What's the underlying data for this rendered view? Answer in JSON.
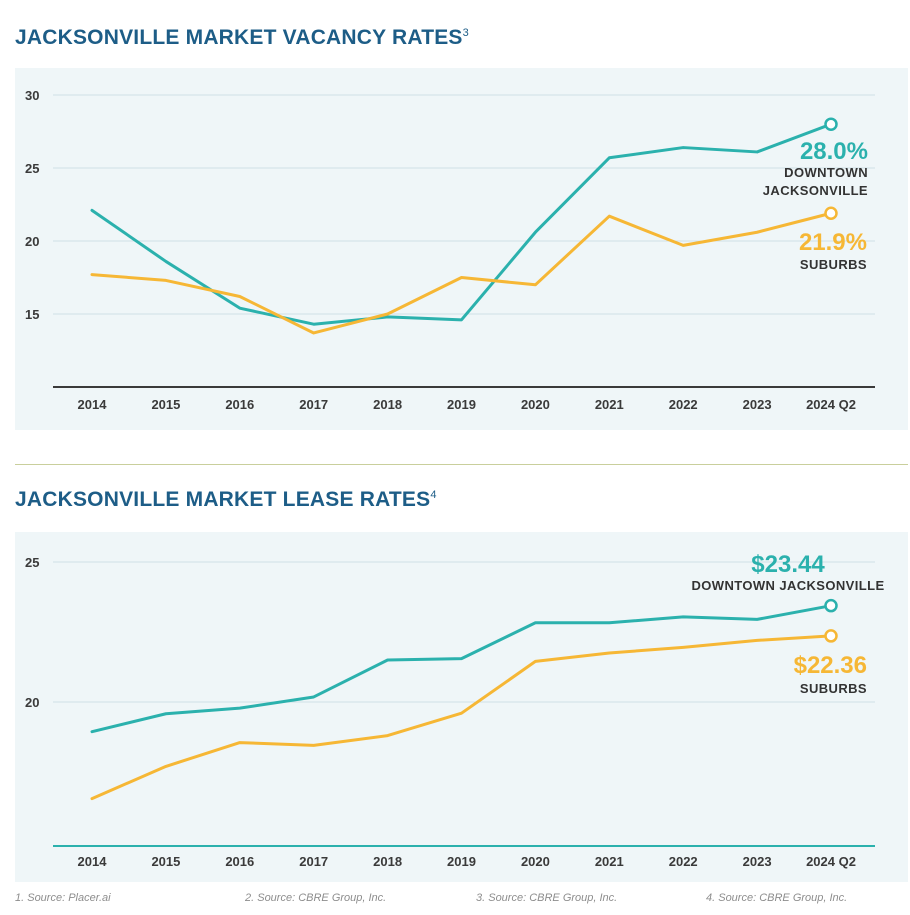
{
  "chart_data": [
    {
      "type": "line",
      "title": "JACKSONVILLE MARKET VACANCY RATES",
      "title_sup": "3",
      "categories": [
        "2014",
        "2015",
        "2016",
        "2017",
        "2018",
        "2019",
        "2020",
        "2021",
        "2022",
        "2023",
        "2024 Q2"
      ],
      "yticks": [
        15,
        20,
        25,
        30
      ],
      "ylim": [
        10,
        30
      ],
      "colors": {
        "downtown": "#2bb1ad",
        "suburbs": "#f6b735",
        "axis": "#3a3a3a"
      },
      "series": [
        {
          "name": "DOWNTOWN JACKSONVILLE",
          "key": "downtown",
          "values": [
            22.1,
            18.6,
            15.4,
            14.3,
            14.8,
            14.6,
            20.6,
            25.7,
            26.4,
            26.1,
            28.0
          ],
          "end_value_label": "28.0%",
          "end_name_lines": [
            "DOWNTOWN",
            "JACKSONVILLE"
          ]
        },
        {
          "name": "SUBURBS",
          "key": "suburbs",
          "values": [
            17.7,
            17.3,
            16.2,
            13.7,
            15.0,
            17.5,
            17.0,
            21.7,
            19.7,
            20.6,
            21.9
          ],
          "end_value_label": "21.9%",
          "end_name_lines": [
            "SUBURBS"
          ]
        }
      ]
    },
    {
      "type": "line",
      "title": "JACKSONVILLE MARKET LEASE RATES",
      "title_sup": "4",
      "categories": [
        "2014",
        "2015",
        "2016",
        "2017",
        "2018",
        "2019",
        "2020",
        "2021",
        "2022",
        "2023",
        "2024 Q2"
      ],
      "yticks": [
        20,
        25
      ],
      "ylim": [
        15,
        26
      ],
      "colors": {
        "downtown": "#2bb1ad",
        "suburbs": "#f6b735",
        "axis": "#2bb1ad"
      },
      "series": [
        {
          "name": "DOWNTOWN JACKSONVILLE",
          "key": "downtown",
          "values": [
            18.94,
            19.58,
            19.78,
            20.18,
            21.5,
            21.55,
            22.83,
            22.83,
            23.04,
            22.95,
            23.44
          ],
          "end_value_label": "$23.44",
          "end_name_lines": [
            "DOWNTOWN JACKSONVILLE"
          ]
        },
        {
          "name": "SUBURBS",
          "key": "suburbs",
          "values": [
            16.55,
            17.7,
            18.55,
            18.45,
            18.8,
            19.6,
            21.45,
            21.75,
            21.95,
            22.2,
            22.36
          ],
          "end_value_label": "$22.36",
          "end_name_lines": [
            "SUBURBS"
          ]
        }
      ]
    }
  ],
  "footer": {
    "source1": "1. Source: Placer.ai",
    "source2": "2. Source: CBRE Group, Inc.",
    "source3": "3. Source: CBRE Group, Inc.",
    "source4": "4. Source: CBRE Group, Inc."
  }
}
